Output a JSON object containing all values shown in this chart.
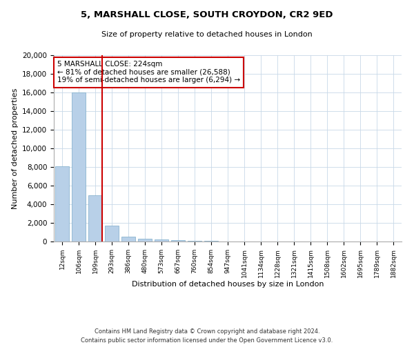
{
  "title1": "5, MARSHALL CLOSE, SOUTH CROYDON, CR2 9ED",
  "title2": "Size of property relative to detached houses in London",
  "xlabel": "Distribution of detached houses by size in London",
  "ylabel": "Number of detached properties",
  "categories": [
    "12sqm",
    "106sqm",
    "199sqm",
    "293sqm",
    "386sqm",
    "480sqm",
    "573sqm",
    "667sqm",
    "760sqm",
    "854sqm",
    "947sqm",
    "1041sqm",
    "1134sqm",
    "1228sqm",
    "1321sqm",
    "1415sqm",
    "1508sqm",
    "1602sqm",
    "1695sqm",
    "1789sqm",
    "1882sqm"
  ],
  "values": [
    8050,
    16000,
    5000,
    1700,
    500,
    300,
    200,
    150,
    100,
    50,
    0,
    0,
    0,
    0,
    0,
    0,
    0,
    0,
    0,
    0,
    0
  ],
  "bar_color": "#b8d0e8",
  "bar_edge_color": "#7aaac8",
  "vline_color": "#cc0000",
  "annotation_text": "5 MARSHALL CLOSE: 224sqm\n← 81% of detached houses are smaller (26,588)\n19% of semi-detached houses are larger (6,294) →",
  "annotation_box_color": "#ffffff",
  "annotation_box_edge": "#cc0000",
  "ylim": [
    0,
    20000
  ],
  "yticks": [
    0,
    2000,
    4000,
    6000,
    8000,
    10000,
    12000,
    14000,
    16000,
    18000,
    20000
  ],
  "footnote1": "Contains HM Land Registry data © Crown copyright and database right 2024.",
  "footnote2": "Contains public sector information licensed under the Open Government Licence v3.0.",
  "background_color": "#ffffff",
  "grid_color": "#c8d8e8"
}
